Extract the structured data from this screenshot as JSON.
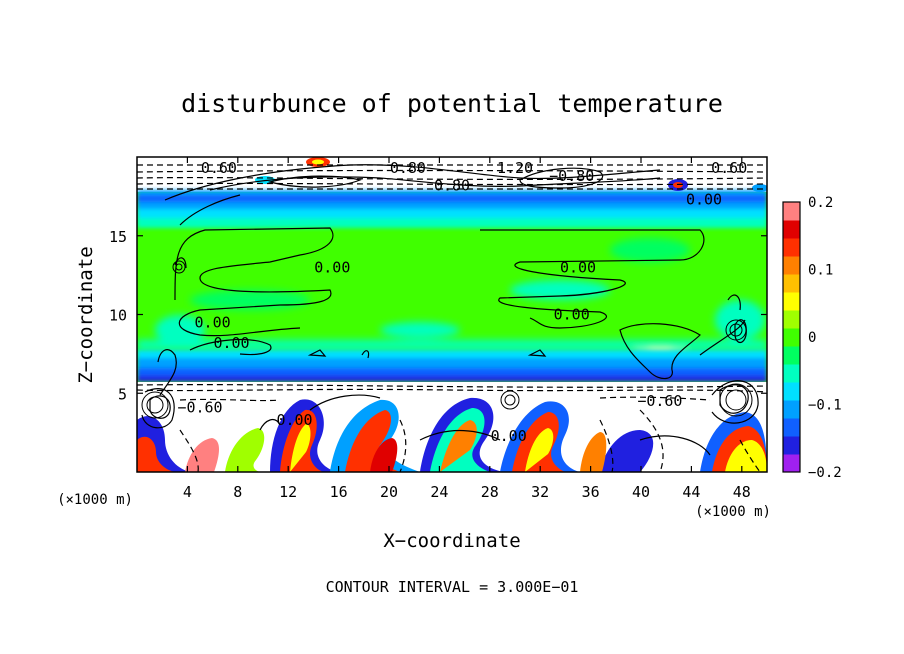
{
  "chart_data": {
    "type": "heatmap",
    "title": "disturbunce of potential temperature",
    "xlabel": "X−coordinate",
    "ylabel": "Z−coordinate",
    "x_unit": "(×1000 m)",
    "y_unit": "(×1000 m)",
    "xlim": [
      0,
      50
    ],
    "ylim": [
      0,
      20
    ],
    "x_ticks": [
      4,
      8,
      12,
      16,
      20,
      24,
      28,
      32,
      36,
      40,
      44,
      48
    ],
    "y_ticks": [
      5,
      10,
      15
    ],
    "colorbar": {
      "range": [
        -0.2,
        0.2
      ],
      "tick_values": [
        -0.2,
        -0.1,
        0,
        0.1,
        0.2
      ],
      "tick_labels": [
        "−0.2",
        "−0.1",
        "0",
        "0.1",
        "0.2"
      ],
      "colors": [
        "#a020f0",
        "#2020e0",
        "#1060ff",
        "#00a0ff",
        "#00e0ff",
        "#00ffc0",
        "#00ff60",
        "#40ff00",
        "#a0ff00",
        "#ffff00",
        "#ffc000",
        "#ff8000",
        "#ff3000",
        "#e00000",
        "#ff8080"
      ]
    },
    "contour_labels": [
      {
        "text": "0.00",
        "x": 15.5,
        "z": 13.0
      },
      {
        "text": "0.00",
        "x": 35.0,
        "z": 13.0
      },
      {
        "text": "0.00",
        "x": 6.0,
        "z": 9.5
      },
      {
        "text": "0.00",
        "x": 34.5,
        "z": 10.0
      },
      {
        "text": "0.00",
        "x": 7.5,
        "z": 8.2
      },
      {
        "text": "0.00",
        "x": 45.0,
        "z": 17.3
      },
      {
        "text": "−0.60",
        "x": 5.0,
        "z": 4.1
      },
      {
        "text": "−0.60",
        "x": 41.5,
        "z": 4.5
      },
      {
        "text": "0.00",
        "x": 12.5,
        "z": 3.3
      },
      {
        "text": "0.00",
        "x": 29.5,
        "z": 2.3
      },
      {
        "text": "0.60",
        "x": 6.5,
        "z": 19.3
      },
      {
        "text": "0.80",
        "x": 21.5,
        "z": 19.3
      },
      {
        "text": "1.20",
        "x": 30.0,
        "z": 19.3
      },
      {
        "text": "0.60",
        "x": 47.0,
        "z": 19.3
      },
      {
        "text": "−0.80",
        "x": 34.5,
        "z": 18.8
      },
      {
        "text": "0.80",
        "x": 25.0,
        "z": 18.2
      }
    ],
    "footer": "CONTOUR INTERVAL = 3.000E−01"
  }
}
